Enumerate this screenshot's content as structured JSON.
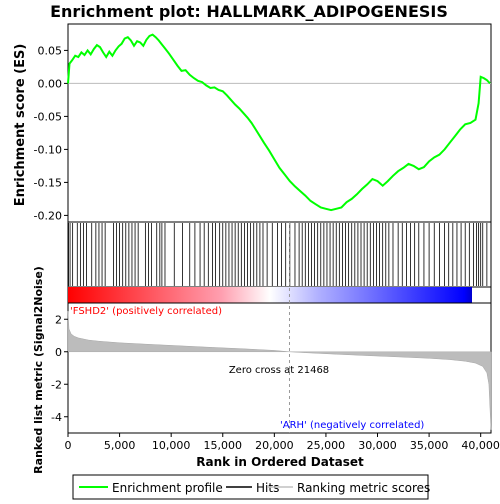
{
  "chart_data": [
    {
      "type": "line",
      "panel": "enrichment-profile",
      "title": "Enrichment plot: HALLMARK_ADIPOGENESIS",
      "xlabel": "",
      "ylabel": "Enrichment score (ES)",
      "xlim": [
        0,
        41000
      ],
      "ylim": [
        -0.21,
        0.09
      ],
      "yticks": [
        0.05,
        0.0,
        -0.05,
        -0.1,
        -0.15,
        -0.2
      ],
      "ytick_labels": [
        "0.05",
        "0.00",
        "-0.05",
        "-0.10",
        "-0.15",
        "-0.20"
      ],
      "grid": false,
      "series": [
        {
          "name": "Enrichment profile",
          "color": "#00ff00",
          "x": [
            0,
            150,
            400,
            700,
            1000,
            1300,
            1600,
            1900,
            2200,
            2500,
            2800,
            3100,
            3400,
            3700,
            4000,
            4300,
            4600,
            4900,
            5200,
            5500,
            5800,
            6100,
            6400,
            6700,
            7000,
            7300,
            7600,
            7900,
            8200,
            8500,
            8800,
            9100,
            9400,
            9800,
            10200,
            10600,
            11000,
            11400,
            11800,
            12200,
            12600,
            13000,
            13400,
            13800,
            14200,
            14600,
            15000,
            15400,
            15800,
            16200,
            16600,
            17000,
            17400,
            17800,
            18200,
            18600,
            19000,
            19500,
            20000,
            20500,
            21000,
            21500,
            22000,
            22500,
            23000,
            23500,
            24000,
            24500,
            25000,
            25500,
            26000,
            26500,
            27000,
            27500,
            28000,
            28500,
            29000,
            29500,
            30000,
            30500,
            31000,
            31500,
            32000,
            32500,
            33000,
            33500,
            34000,
            34500,
            35000,
            35500,
            36000,
            36500,
            37000,
            37500,
            38000,
            38500,
            39000,
            39500,
            39800,
            40000,
            40300,
            40600,
            40900
          ],
          "values": [
            0.0,
            0.03,
            0.035,
            0.042,
            0.04,
            0.047,
            0.043,
            0.05,
            0.044,
            0.052,
            0.058,
            0.055,
            0.047,
            0.04,
            0.048,
            0.042,
            0.05,
            0.056,
            0.06,
            0.068,
            0.07,
            0.065,
            0.057,
            0.064,
            0.062,
            0.057,
            0.066,
            0.072,
            0.074,
            0.07,
            0.065,
            0.059,
            0.053,
            0.045,
            0.036,
            0.027,
            0.019,
            0.02,
            0.013,
            0.008,
            0.004,
            0.002,
            -0.003,
            -0.007,
            -0.006,
            -0.01,
            -0.012,
            -0.018,
            -0.025,
            -0.032,
            -0.038,
            -0.045,
            -0.052,
            -0.06,
            -0.07,
            -0.08,
            -0.09,
            -0.102,
            -0.115,
            -0.128,
            -0.138,
            -0.148,
            -0.156,
            -0.163,
            -0.17,
            -0.178,
            -0.183,
            -0.188,
            -0.19,
            -0.192,
            -0.19,
            -0.188,
            -0.18,
            -0.175,
            -0.168,
            -0.16,
            -0.153,
            -0.145,
            -0.148,
            -0.155,
            -0.148,
            -0.14,
            -0.133,
            -0.128,
            -0.122,
            -0.125,
            -0.13,
            -0.127,
            -0.118,
            -0.112,
            -0.108,
            -0.1,
            -0.09,
            -0.08,
            -0.07,
            -0.062,
            -0.06,
            -0.055,
            -0.03,
            0.01,
            0.008,
            0.005,
            0.0
          ]
        }
      ]
    },
    {
      "type": "scatter",
      "panel": "hits",
      "name": "Hits",
      "xlim": [
        0,
        41000
      ],
      "x": [
        50,
        200,
        450,
        900,
        1200,
        1500,
        1800,
        2300,
        2700,
        3000,
        3300,
        3600,
        4400,
        4700,
        5000,
        5300,
        5600,
        5900,
        6200,
        6500,
        6800,
        7500,
        7800,
        8100,
        8600,
        8900,
        9100,
        9400,
        10300,
        11100,
        11800,
        12300,
        12800,
        13200,
        13600,
        14000,
        14300,
        14700,
        15000,
        15300,
        15600,
        15900,
        16200,
        16500,
        16800,
        17100,
        17400,
        17700,
        18000,
        18300,
        18600,
        18900,
        19300,
        19800,
        20300,
        20700,
        21100,
        21500,
        22000,
        22400,
        22700,
        23000,
        23300,
        23600,
        23900,
        24200,
        24500,
        24800,
        25100,
        25400,
        25700,
        26000,
        26300,
        26600,
        26900,
        27200,
        27500,
        27800,
        28100,
        28400,
        28700,
        29000,
        29300,
        29600,
        29900,
        30200,
        30500,
        30800,
        31100,
        31500,
        32000,
        32400,
        32800,
        33200,
        33600,
        34000,
        34500,
        35000,
        35500,
        36000,
        36500,
        36900,
        37300,
        37700,
        38100,
        38500,
        38900,
        39300,
        39600,
        39800,
        40000,
        40200,
        40600
      ]
    },
    {
      "type": "heatmap",
      "panel": "ranking-colorbar",
      "xlim": [
        0,
        41000
      ],
      "colors": [
        "#ff0000",
        "#ffffff",
        "#0000ff"
      ]
    },
    {
      "type": "area",
      "panel": "ranked-list-metric",
      "xlabel": "Rank in Ordered Dataset",
      "ylabel": "Ranked list metric (Signal2Noise)",
      "xlim": [
        0,
        41000
      ],
      "ylim": [
        -5,
        3
      ],
      "xticks": [
        0,
        5000,
        10000,
        15000,
        20000,
        25000,
        30000,
        35000,
        40000
      ],
      "xtick_labels": [
        "0",
        "5,000",
        "10,000",
        "15,000",
        "20,000",
        "25,000",
        "30,000",
        "35,000",
        "40,000"
      ],
      "yticks": [
        2,
        0,
        -2,
        -4
      ],
      "ytick_labels": [
        "2",
        "0",
        "-2",
        "-4"
      ],
      "series": [
        {
          "name": "Ranking metric scores",
          "color": "#c0c0c0",
          "x": [
            0,
            100,
            300,
            600,
            1000,
            2000,
            3000,
            5000,
            8000,
            11000,
            14000,
            17000,
            20000,
            21468,
            23000,
            26000,
            29000,
            32000,
            35000,
            37000,
            38500,
            39500,
            40200,
            40600,
            40800,
            40900,
            41000
          ],
          "values": [
            2.5,
            1.4,
            1.1,
            0.95,
            0.85,
            0.72,
            0.65,
            0.55,
            0.45,
            0.36,
            0.27,
            0.18,
            0.08,
            0.0,
            -0.06,
            -0.15,
            -0.24,
            -0.32,
            -0.4,
            -0.48,
            -0.58,
            -0.7,
            -0.9,
            -1.3,
            -2.0,
            -3.5,
            -4.8
          ]
        }
      ],
      "annotations": {
        "zero_cross": "Zero cross at 21468",
        "zero_cross_x": 21468,
        "positive_label": "'FSHD2' (positively correlated)",
        "negative_label": "'ARH' (negatively correlated)"
      }
    }
  ],
  "legend": {
    "items": [
      {
        "label": "Enrichment profile",
        "color": "#00ff00"
      },
      {
        "label": "Hits",
        "color": "#000000"
      },
      {
        "label": "Ranking metric scores",
        "color": "#c0c0c0"
      }
    ]
  }
}
